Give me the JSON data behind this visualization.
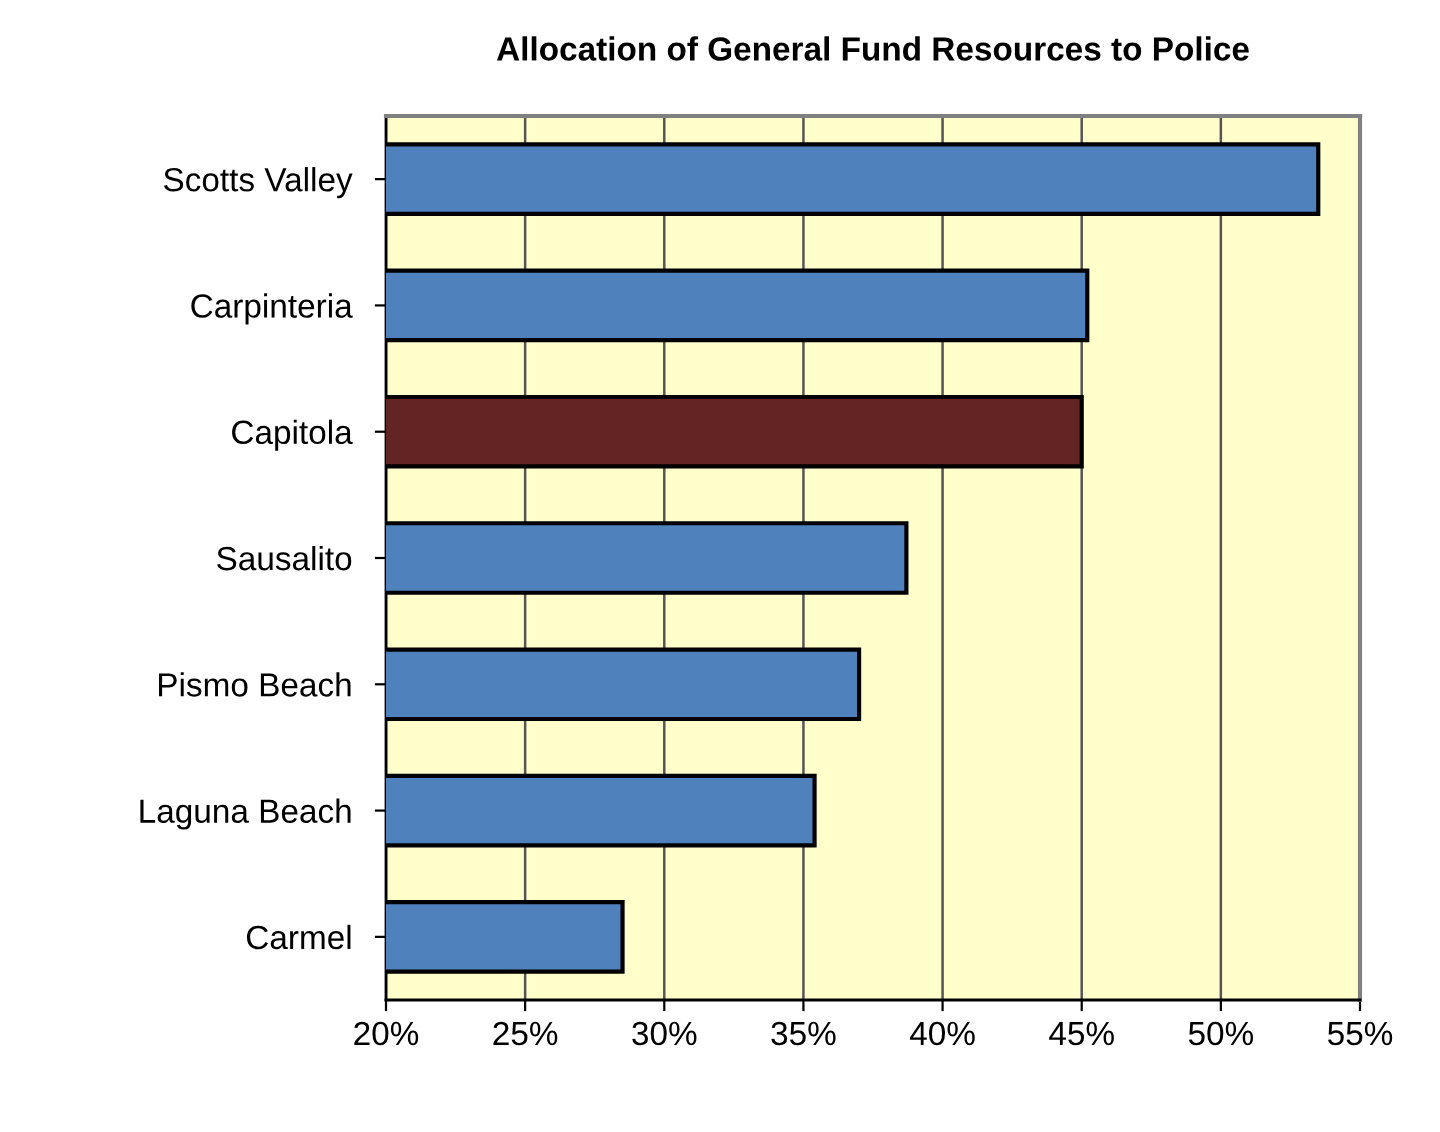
{
  "chart_data": {
    "type": "bar",
    "orientation": "horizontal",
    "title": "Allocation of General Fund Resources to Police",
    "categories": [
      "Scotts Valley",
      "Carpinteria",
      "Capitola",
      "Sausalito",
      "Pismo Beach",
      "Laguna Beach",
      "Carmel"
    ],
    "values": [
      53.5,
      45.2,
      45.0,
      38.7,
      37.0,
      35.4,
      28.5
    ],
    "colors": [
      "#4f81bd",
      "#4f81bd",
      "#632523",
      "#4f81bd",
      "#4f81bd",
      "#4f81bd",
      "#4f81bd"
    ],
    "xlim": [
      20,
      55
    ],
    "xticks": [
      {
        "value": 20,
        "label": "20%"
      },
      {
        "value": 25,
        "label": "25%"
      },
      {
        "value": 30,
        "label": "30%"
      },
      {
        "value": 35,
        "label": "35%"
      },
      {
        "value": 40,
        "label": "40%"
      },
      {
        "value": 45,
        "label": "45%"
      },
      {
        "value": 50,
        "label": "50%"
      },
      {
        "value": 55,
        "label": "55%"
      }
    ],
    "grid": "x"
  }
}
